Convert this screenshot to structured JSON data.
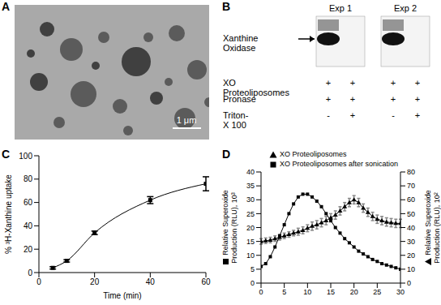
{
  "panels": {
    "A": {
      "label": "A",
      "scale_bar": "1 μm"
    },
    "B": {
      "label": "B",
      "experiments": [
        "Exp 1",
        "Exp 2"
      ],
      "band_label": "Xanthine Oxidase",
      "band_present": [
        true,
        false,
        true,
        false
      ],
      "rows": [
        {
          "name": "XO Proteoliposomes",
          "marks": [
            "+",
            "+",
            "+",
            "+"
          ]
        },
        {
          "name": "Pronase",
          "marks": [
            "+",
            "+",
            "+",
            "+"
          ]
        },
        {
          "name": "Triton-X 100",
          "marks": [
            "-",
            "+",
            "-",
            "+"
          ]
        }
      ]
    }
  },
  "chart_data": [
    {
      "panel": "C",
      "type": "line",
      "marker": "square",
      "color": "#000000",
      "x": [
        5,
        10,
        20,
        40,
        60
      ],
      "values": [
        4,
        10,
        34,
        62,
        76
      ],
      "error": [
        1,
        1,
        1.5,
        3,
        6
      ],
      "xlim": [
        0,
        60
      ],
      "xticks": [
        0,
        20,
        40,
        60
      ],
      "ylim": [
        0,
        100
      ],
      "yticks": [
        0,
        20,
        40,
        60,
        80,
        100
      ],
      "xlabel": "Time (min)",
      "ylabel": "% ³H-Xanthine uptake"
    },
    {
      "panel": "D",
      "type": "line",
      "legend": "top",
      "x": [
        0,
        1,
        2,
        3,
        4,
        5,
        6,
        7,
        8,
        9,
        10,
        11,
        12,
        13,
        14,
        15,
        16,
        17,
        18,
        19,
        20,
        21,
        22,
        23,
        24,
        25,
        26,
        27,
        28,
        29,
        30
      ],
      "xlim": [
        0,
        30
      ],
      "xticks": [
        0,
        5,
        10,
        15,
        20,
        25,
        30
      ],
      "ylim": [
        0,
        40
      ],
      "yticks": [
        0,
        5,
        10,
        15,
        20,
        25,
        30,
        35,
        40
      ],
      "y2lim": [
        0,
        80
      ],
      "y2ticks": [
        0,
        10,
        20,
        30,
        40,
        50,
        60,
        70,
        80
      ],
      "ylabel": "Relative Superoxide Production (RLU), 10³",
      "y2label": "Relative Superoxide Production (RLU), 10²",
      "series": [
        {
          "name": "XO Proteoliposomes",
          "axis": "y2",
          "marker": "triangle",
          "color": "#000000",
          "values": [
            30,
            30.5,
            31,
            32,
            33,
            34,
            35,
            36,
            37,
            38,
            39.5,
            41,
            42,
            43.5,
            45,
            47,
            49,
            52,
            55,
            58,
            60,
            58,
            54,
            51,
            48,
            46,
            45,
            44,
            43.5,
            43,
            43
          ],
          "error": [
            2,
            2,
            2,
            2,
            2,
            2,
            2,
            2,
            2.5,
            2.5,
            2.5,
            3,
            3,
            3,
            3,
            3,
            3,
            3,
            3,
            3,
            3,
            3,
            3,
            3,
            3,
            3,
            3,
            3,
            3,
            3,
            3
          ]
        },
        {
          "name": "XO Proteoliposomes after sonication",
          "axis": "y",
          "marker": "square",
          "color": "#000000",
          "values": [
            6,
            7,
            9.5,
            13,
            17,
            21,
            25,
            28.5,
            31,
            32,
            32,
            31,
            29.5,
            27.5,
            25,
            22.5,
            20,
            18,
            16,
            14.5,
            13,
            11.5,
            10.5,
            9.5,
            8.5,
            7.8,
            7,
            6.5,
            6,
            5.5,
            5
          ]
        }
      ]
    }
  ]
}
